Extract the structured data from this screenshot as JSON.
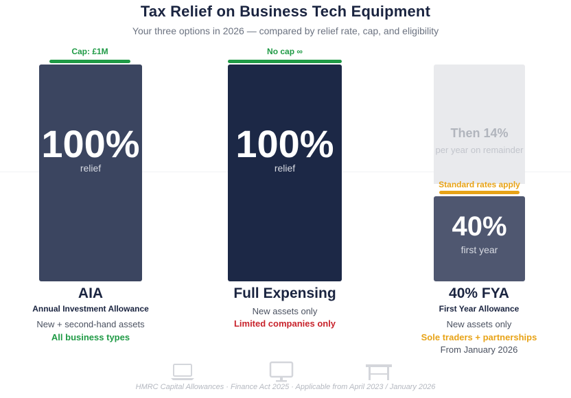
{
  "title": "Tax Relief on Business Tech Equipment",
  "subtitle": "Your three options in 2026 — compared by relief rate, cap, and eligibility",
  "colors": {
    "aia_bar": "#3b4560",
    "full_bar": "#1c2846",
    "fya_bar": "#4f5770",
    "fya_remainder": "#e9eaed",
    "green": "#1f9a45",
    "red": "#c8232c",
    "orange": "#e8a317"
  },
  "chart_data": {
    "type": "bar",
    "categories": [
      "AIA",
      "Full Expensing",
      "40% FYA"
    ],
    "values": [
      100,
      100,
      40
    ],
    "ylim": [
      0,
      100
    ],
    "grid": false,
    "annotations": [
      "Cap: £1M",
      "No cap ∞",
      "Standard rates apply",
      "Then 14%"
    ]
  },
  "options": [
    {
      "cap": "Cap: £1M",
      "value": "100%",
      "value_label": "relief",
      "name": "AIA",
      "full_name": "Annual Investment Allowance",
      "assets": "New + second-hand assets",
      "eligibility": "All business types"
    },
    {
      "cap": "No cap ∞",
      "value": "100%",
      "value_label": "relief",
      "name": "Full Expensing",
      "assets": "New assets only",
      "eligibility": "Limited companies only"
    },
    {
      "remainder_value": "Then 14%",
      "remainder_label": "per year on remainder",
      "cap": "Standard rates apply",
      "value": "40%",
      "value_label": "first year",
      "name": "40% FYA",
      "full_name": "First Year Allowance",
      "assets": "New assets only",
      "eligibility": "Sole traders + partnerships",
      "date": "From January 2026"
    }
  ],
  "footer": "HMRC Capital Allowances · Finance Act 2025 · Applicable from April 2023 / January 2026",
  "footer_icons": [
    "laptop-icon",
    "monitor-icon",
    "desk-icon"
  ]
}
